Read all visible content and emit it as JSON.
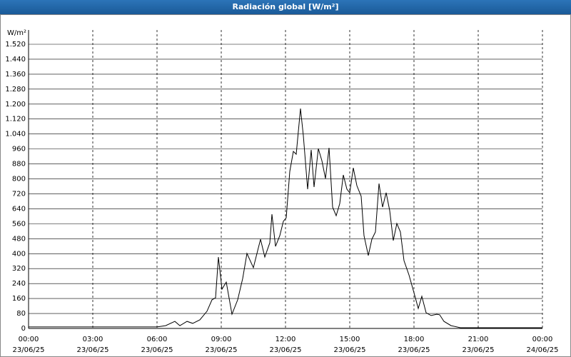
{
  "chart_data": {
    "type": "line",
    "title": "Radiación global [W/m²]",
    "y_label": "W/m²",
    "x": [
      "2025-06-23T00:00",
      "2025-06-23T06:00",
      "2025-06-23T06:24",
      "2025-06-23T06:50",
      "2025-06-23T07:04",
      "2025-06-23T07:24",
      "2025-06-23T07:40",
      "2025-06-23T08:00",
      "2025-06-23T08:20",
      "2025-06-23T08:34",
      "2025-06-23T08:44",
      "2025-06-23T08:52",
      "2025-06-23T09:02",
      "2025-06-23T09:14",
      "2025-06-23T09:30",
      "2025-06-23T09:46",
      "2025-06-23T10:00",
      "2025-06-23T10:12",
      "2025-06-23T10:30",
      "2025-06-23T10:50",
      "2025-06-23T11:02",
      "2025-06-23T11:16",
      "2025-06-23T11:22",
      "2025-06-23T11:32",
      "2025-06-23T11:44",
      "2025-06-23T11:54",
      "2025-06-23T12:02",
      "2025-06-23T12:12",
      "2025-06-23T12:22",
      "2025-06-23T12:30",
      "2025-06-23T12:42",
      "2025-06-23T12:50",
      "2025-06-23T13:02",
      "2025-06-23T13:12",
      "2025-06-23T13:20",
      "2025-06-23T13:32",
      "2025-06-23T13:42",
      "2025-06-23T13:52",
      "2025-06-23T14:02",
      "2025-06-23T14:12",
      "2025-06-23T14:22",
      "2025-06-23T14:32",
      "2025-06-23T14:42",
      "2025-06-23T14:52",
      "2025-06-23T15:00",
      "2025-06-23T15:10",
      "2025-06-23T15:20",
      "2025-06-23T15:32",
      "2025-06-23T15:40",
      "2025-06-23T15:52",
      "2025-06-23T16:02",
      "2025-06-23T16:12",
      "2025-06-23T16:22",
      "2025-06-23T16:32",
      "2025-06-23T16:42",
      "2025-06-23T16:52",
      "2025-06-23T17:02",
      "2025-06-23T17:12",
      "2025-06-23T17:22",
      "2025-06-23T17:32",
      "2025-06-23T17:46",
      "2025-06-23T18:00",
      "2025-06-23T18:12",
      "2025-06-23T18:22",
      "2025-06-23T18:34",
      "2025-06-23T18:48",
      "2025-06-23T19:04",
      "2025-06-23T19:12",
      "2025-06-23T19:24",
      "2025-06-23T19:44",
      "2025-06-23T20:10",
      "2025-06-24T00:00"
    ],
    "series": [
      {
        "name": "Radiación global",
        "color": "#000000",
        "values": [
          8,
          8,
          15,
          38,
          15,
          38,
          27,
          46,
          92,
          153,
          164,
          382,
          210,
          248,
          76,
          153,
          267,
          401,
          325,
          477,
          382,
          458,
          611,
          439,
          496,
          573,
          592,
          840,
          947,
          932,
          1176,
          1031,
          745,
          955,
          756,
          962,
          897,
          802,
          966,
          649,
          603,
          668,
          821,
          745,
          726,
          859,
          764,
          707,
          496,
          390,
          477,
          516,
          775,
          649,
          726,
          630,
          470,
          561,
          516,
          363,
          286,
          191,
          107,
          172,
          84,
          69,
          76,
          73,
          38,
          15,
          4,
          4
        ]
      }
    ],
    "xlim": [
      "2025-06-23T00:00",
      "2025-06-24T00:00"
    ],
    "xticks": [
      {
        "value": "2025-06-23T00:00",
        "label": "00:00",
        "date": "23/06/25"
      },
      {
        "value": "2025-06-23T03:00",
        "label": "03:00",
        "date": "23/06/25"
      },
      {
        "value": "2025-06-23T06:00",
        "label": "06:00",
        "date": "23/06/25"
      },
      {
        "value": "2025-06-23T09:00",
        "label": "09:00",
        "date": "23/06/25"
      },
      {
        "value": "2025-06-23T12:00",
        "label": "12:00",
        "date": "23/06/25"
      },
      {
        "value": "2025-06-23T15:00",
        "label": "15:00",
        "date": "23/06/25"
      },
      {
        "value": "2025-06-23T18:00",
        "label": "18:00",
        "date": "23/06/25"
      },
      {
        "value": "2025-06-23T21:00",
        "label": "21:00",
        "date": "23/06/25"
      },
      {
        "value": "2025-06-24T00:00",
        "label": "00:00",
        "date": "24/06/25"
      }
    ],
    "ylim": [
      0,
      1520
    ],
    "yticks": [
      0,
      80,
      160,
      240,
      320,
      400,
      480,
      560,
      640,
      720,
      800,
      880,
      960,
      {
        "value": 1040,
        "label": "1.040"
      },
      {
        "value": 1120,
        "label": "1.120"
      },
      {
        "value": 1200,
        "label": "1.200"
      },
      {
        "value": 1280,
        "label": "1.280"
      },
      {
        "value": 1360,
        "label": "1.360"
      },
      {
        "value": 1440,
        "label": "1.440"
      },
      {
        "value": 1520,
        "label": "1.520"
      }
    ],
    "grid": true
  }
}
